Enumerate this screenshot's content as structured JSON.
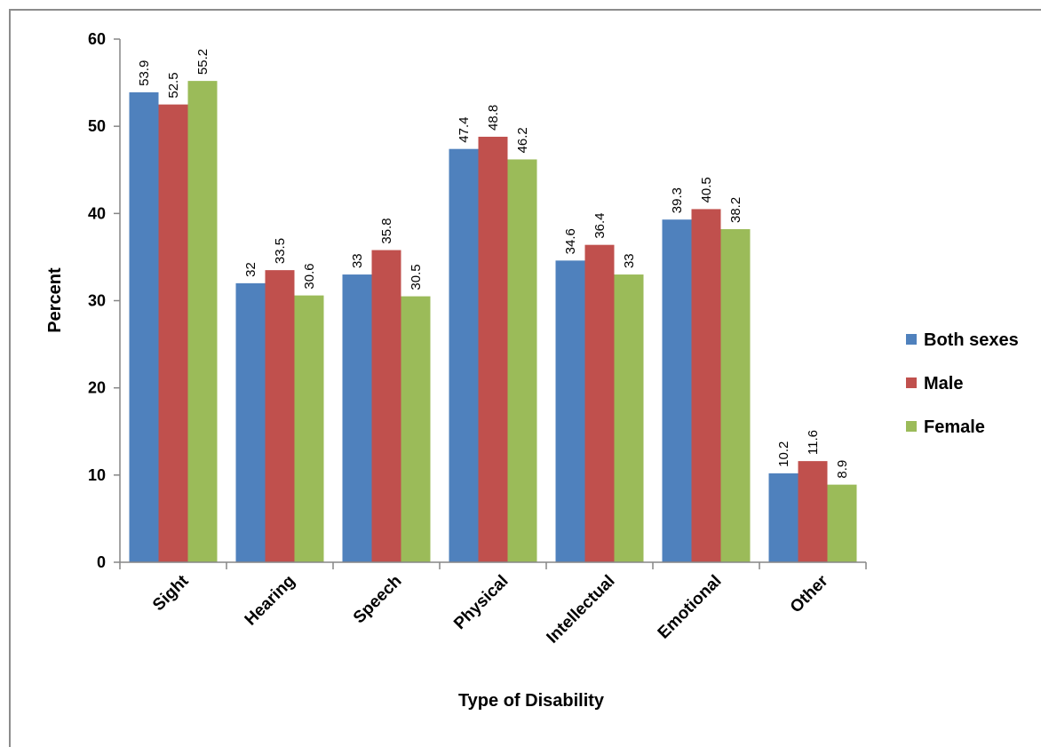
{
  "chart_data": {
    "type": "bar",
    "title": "",
    "xlabel": "Type of Disability",
    "ylabel": "Percent",
    "ylim": [
      0,
      60
    ],
    "yticks": [
      0,
      10,
      20,
      30,
      40,
      50,
      60
    ],
    "grid": false,
    "legend_position": "right",
    "categories": [
      "Sight",
      "Hearing",
      "Speech",
      "Physical",
      "Intellectual",
      "Emotional",
      "Other"
    ],
    "series": [
      {
        "name": "Both sexes",
        "color": "#4f81bd",
        "values": [
          53.9,
          32,
          33,
          47.4,
          34.6,
          39.3,
          10.2
        ]
      },
      {
        "name": "Male",
        "color": "#c0504d",
        "values": [
          52.5,
          33.5,
          35.8,
          48.8,
          36.4,
          40.5,
          11.6
        ]
      },
      {
        "name": "Female",
        "color": "#9bbb59",
        "values": [
          55.2,
          30.6,
          30.5,
          46.2,
          33,
          38.2,
          8.9
        ]
      }
    ]
  }
}
